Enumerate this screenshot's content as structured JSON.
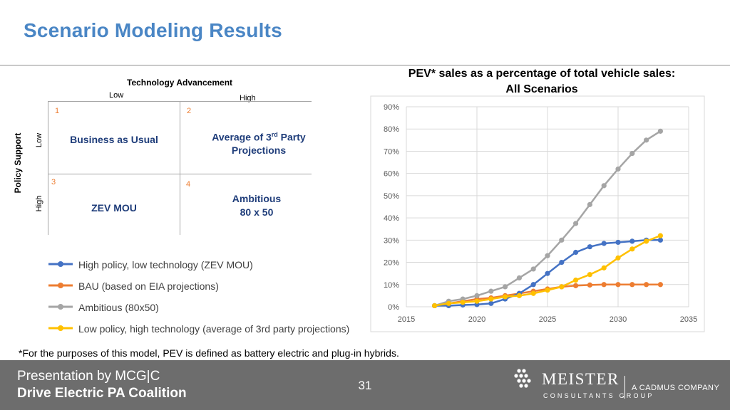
{
  "slide": {
    "title": "Scenario Modeling Results",
    "footnote": "*For the purposes of this model, PEV is defined as battery electric and plug-in hybrids.",
    "page_number": "31"
  },
  "matrix": {
    "x_axis_title": "Technology Advancement",
    "x_low": "Low",
    "x_high": "High",
    "y_axis_title": "Policy Support",
    "y_low": "Low",
    "y_high": "High",
    "cells": [
      {
        "num": "1",
        "text": "Business as Usual"
      },
      {
        "num": "2",
        "text_main": "Average of 3",
        "text_sup": "rd",
        "text_rest": " Party",
        "text_line2": "Projections"
      },
      {
        "num": "3",
        "text": "ZEV MOU"
      },
      {
        "num": "4",
        "text_line1": "Ambitious",
        "text_line2": "80 x 50"
      }
    ]
  },
  "footer": {
    "presenter": "Presentation by MCG|C",
    "client": "Drive Electric PA Coalition",
    "logo_name": "MEISTER",
    "logo_sub": "CONSULTANTS GROUP",
    "logo_tag": "A CADMUS COMPANY"
  },
  "colors": {
    "title": "#4a86c5",
    "zev": "#4472c4",
    "bau": "#ed7d31",
    "ambitious": "#a5a5a5",
    "lowpolicy": "#ffc000",
    "footer": "#6d6d6d"
  },
  "chart_data": {
    "type": "line",
    "title_line1": "PEV* sales as a percentage of total vehicle sales:",
    "title_line2": "All Scenarios",
    "x_ticks": [
      2015,
      2020,
      2025,
      2030,
      2035
    ],
    "y_ticks": [
      "0%",
      "10%",
      "20%",
      "30%",
      "40%",
      "50%",
      "60%",
      "70%",
      "80%",
      "90%"
    ],
    "xlim": [
      2015,
      2035
    ],
    "ylim": [
      0,
      90
    ],
    "grid": true,
    "legend_position": "left",
    "x": [
      2017,
      2018,
      2019,
      2020,
      2021,
      2022,
      2023,
      2024,
      2025,
      2026,
      2027,
      2028,
      2029,
      2030,
      2031,
      2032,
      2033
    ],
    "series": [
      {
        "name": "High policy, low technology (ZEV MOU)",
        "color": "#4472c4",
        "values": [
          0.5,
          0.5,
          0.8,
          1,
          1.5,
          3.5,
          6,
          10,
          15,
          20,
          24.5,
          27,
          28.5,
          29,
          29.5,
          30,
          30
        ]
      },
      {
        "name": "BAU (based on EIA projections)",
        "color": "#ed7d31",
        "values": [
          0.5,
          1.5,
          2.5,
          3.5,
          4,
          5,
          6,
          7,
          8,
          9,
          9.5,
          9.8,
          10,
          10,
          10,
          10,
          10
        ]
      },
      {
        "name": "Ambitious (80x50)",
        "color": "#a5a5a5",
        "values": [
          0.5,
          2.5,
          3.5,
          5,
          7,
          9,
          13,
          17,
          23,
          30,
          37.5,
          46,
          54.5,
          62,
          69,
          75,
          79
        ]
      },
      {
        "name": "Low policy, high technology (average of 3rd party projections)",
        "color": "#ffc000",
        "values": [
          0.5,
          1.5,
          2,
          2.5,
          3.5,
          4.5,
          5,
          6,
          7.5,
          9,
          12,
          14.5,
          17.5,
          22,
          26,
          29.5,
          32
        ]
      }
    ]
  }
}
